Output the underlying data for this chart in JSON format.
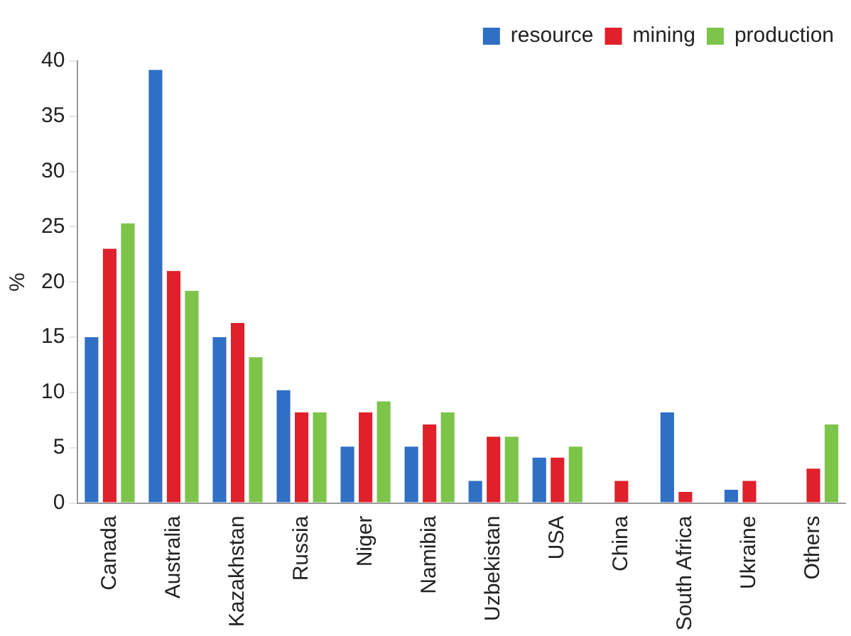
{
  "chart_data": {
    "type": "bar",
    "ylabel": "%",
    "categories": [
      "Canada",
      "Australia",
      "Kazakhstan",
      "Russia",
      "Niger",
      "Namibia",
      "Uzbekistan",
      "USA",
      "China",
      "South Africa",
      "Ukraine",
      "Others"
    ],
    "series": [
      {
        "name": "resource",
        "color": "#2f6fc4",
        "values": [
          15,
          39.2,
          15,
          10.2,
          5.1,
          5.1,
          2,
          4.1,
          0,
          8.2,
          1.2,
          0
        ]
      },
      {
        "name": "mining",
        "color": "#e0202a",
        "values": [
          23,
          21,
          16.3,
          8.2,
          8.2,
          7.1,
          6,
          4.1,
          2,
          1,
          2,
          3.1
        ]
      },
      {
        "name": "production",
        "color": "#7cc44a",
        "values": [
          25.3,
          19.2,
          13.2,
          8.2,
          9.2,
          8.2,
          6,
          5.1,
          0,
          0,
          0,
          7.1
        ]
      }
    ],
    "ylim": [
      0,
      40
    ],
    "yticks": [
      0,
      5,
      10,
      15,
      20,
      25,
      30,
      35,
      40
    ],
    "grid": false,
    "legend": "top right"
  }
}
